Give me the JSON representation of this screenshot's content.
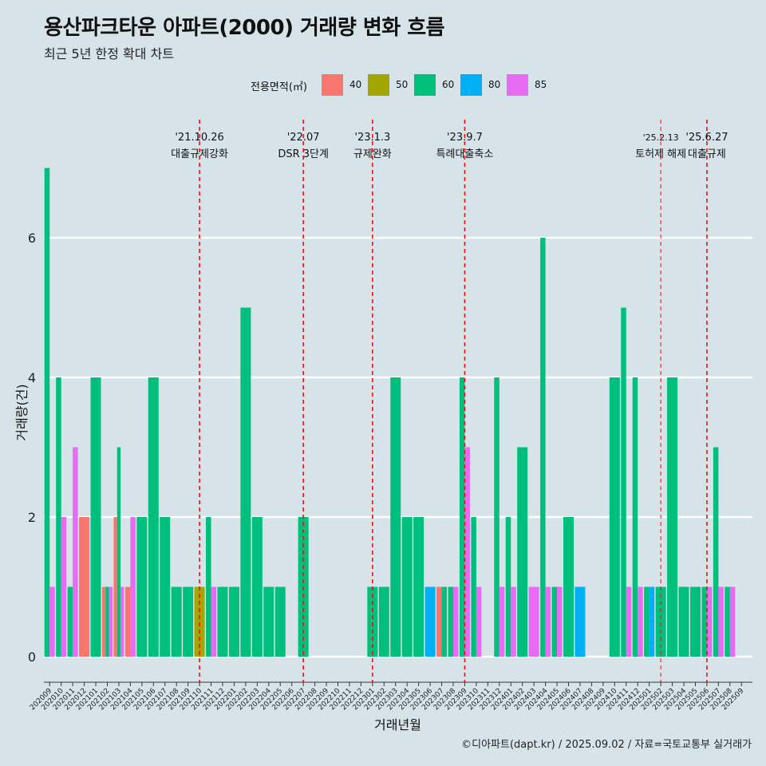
{
  "title": "용산파크타운 아파트(2000) 거래량 변화 흐름",
  "subtitle": "최근 5년 한정 확대 차트",
  "caption": "©디아파트(dapt.kr) / 2025.09.02 / 자료=국토교통부 실거래가",
  "legend": {
    "title": "전용면적(㎡)",
    "items": [
      {
        "label": "40",
        "color": "#f8766d"
      },
      {
        "label": "50",
        "color": "#a3a500"
      },
      {
        "label": "60",
        "color": "#00bf7d"
      },
      {
        "label": "80",
        "color": "#00b0f6"
      },
      {
        "label": "85",
        "color": "#e76bf3"
      }
    ]
  },
  "chart_data": {
    "type": "bar",
    "title": "용산파크타운 아파트(2000) 거래량 변화 흐름",
    "xlabel": "거래년월",
    "ylabel": "거래량(건)",
    "ylim": [
      -0.35,
      7.4
    ],
    "yticks": [
      0,
      2,
      4,
      6
    ],
    "grid": true,
    "legend_position": "top",
    "categories": [
      "202009",
      "202010",
      "202011",
      "202012",
      "202101",
      "202102",
      "202103",
      "202104",
      "202105",
      "202106",
      "202107",
      "202108",
      "202109",
      "202110",
      "202111",
      "202112",
      "202201",
      "202202",
      "202203",
      "202204",
      "202205",
      "202206",
      "202207",
      "202208",
      "202209",
      "202210",
      "202211",
      "202212",
      "202301",
      "202302",
      "202303",
      "202304",
      "202305",
      "202306",
      "202307",
      "202308",
      "202309",
      "202310",
      "202311",
      "202312",
      "202401",
      "202402",
      "202403",
      "202404",
      "202405",
      "202406",
      "202407",
      "202408",
      "202409",
      "202410",
      "202411",
      "202412",
      "202501",
      "202502",
      "202503",
      "202504",
      "202505",
      "202506",
      "202507",
      "202508",
      "202509"
    ],
    "series": [
      {
        "name": "40",
        "values": [
          0,
          0,
          0,
          2,
          0,
          1,
          2,
          1,
          0,
          0,
          0,
          0,
          0,
          0,
          0,
          0,
          0,
          0,
          0,
          0,
          0,
          0,
          0,
          0,
          0,
          0,
          0,
          0,
          0,
          0,
          0,
          0,
          0,
          0,
          1,
          0,
          0,
          0,
          0,
          0,
          0,
          0,
          0,
          0,
          0,
          0,
          0,
          0,
          0,
          0,
          0,
          0,
          0,
          0,
          0,
          0,
          0,
          0,
          0,
          0,
          0
        ]
      },
      {
        "name": "50",
        "values": [
          0,
          0,
          0,
          0,
          0,
          0,
          0,
          0,
          0,
          0,
          0,
          0,
          0,
          1,
          0,
          0,
          0,
          0,
          0,
          0,
          0,
          0,
          0,
          0,
          0,
          0,
          0,
          0,
          0,
          0,
          0,
          0,
          0,
          0,
          0,
          0,
          0,
          0,
          0,
          0,
          0,
          0,
          0,
          0,
          0,
          0,
          0,
          0,
          0,
          0,
          0,
          0,
          0,
          0,
          0,
          0,
          0,
          0,
          0,
          0,
          0
        ]
      },
      {
        "name": "60",
        "values": [
          7,
          4,
          1,
          0,
          4,
          1,
          3,
          0,
          2,
          4,
          2,
          1,
          1,
          0,
          2,
          1,
          1,
          5,
          2,
          1,
          1,
          0,
          2,
          0,
          0,
          0,
          0,
          0,
          1,
          1,
          4,
          2,
          2,
          0,
          1,
          1,
          4,
          2,
          0,
          4,
          2,
          3,
          0,
          6,
          1,
          2,
          0,
          0,
          0,
          4,
          5,
          4,
          1,
          1,
          4,
          1,
          1,
          1,
          3,
          1,
          0
        ]
      },
      {
        "name": "80",
        "values": [
          0,
          0,
          0,
          0,
          0,
          0,
          0,
          0,
          0,
          0,
          0,
          0,
          0,
          0,
          0,
          0,
          0,
          0,
          0,
          0,
          0,
          0,
          0,
          0,
          0,
          0,
          0,
          0,
          0,
          0,
          0,
          0,
          0,
          1,
          0,
          0,
          0,
          0,
          0,
          0,
          0,
          0,
          0,
          0,
          0,
          0,
          1,
          0,
          0,
          0,
          0,
          0,
          1,
          0,
          0,
          0,
          0,
          0,
          0,
          0,
          0
        ]
      },
      {
        "name": "85",
        "values": [
          1,
          2,
          3,
          0,
          0,
          1,
          1,
          2,
          0,
          0,
          0,
          0,
          0,
          0,
          1,
          0,
          0,
          0,
          0,
          0,
          0,
          0,
          0,
          0,
          0,
          0,
          0,
          0,
          0,
          0,
          0,
          0,
          0,
          0,
          0,
          1,
          3,
          1,
          0,
          1,
          1,
          0,
          1,
          1,
          1,
          0,
          0,
          0,
          0,
          0,
          1,
          1,
          0,
          0,
          0,
          0,
          0,
          1,
          1,
          1,
          0
        ]
      }
    ],
    "annotations": [
      {
        "x": "202110",
        "date": "'21.10.26",
        "label": "대출규제강화",
        "style": "solid"
      },
      {
        "x": "202207",
        "date": "'22.07",
        "label": "DSR 3단계",
        "style": "solid"
      },
      {
        "x": "202301",
        "date": "'23.1.3",
        "label": "규제완화",
        "style": "solid"
      },
      {
        "x": "202309",
        "date": "'23.9.7",
        "label": "특례대출축소",
        "style": "solid"
      },
      {
        "x": "202502",
        "date": "'25.2.13",
        "label": "토허제 해제",
        "style": "thin"
      },
      {
        "x": "202506",
        "date": "'25.6.27",
        "label": "대출규제",
        "style": "solid"
      }
    ]
  }
}
